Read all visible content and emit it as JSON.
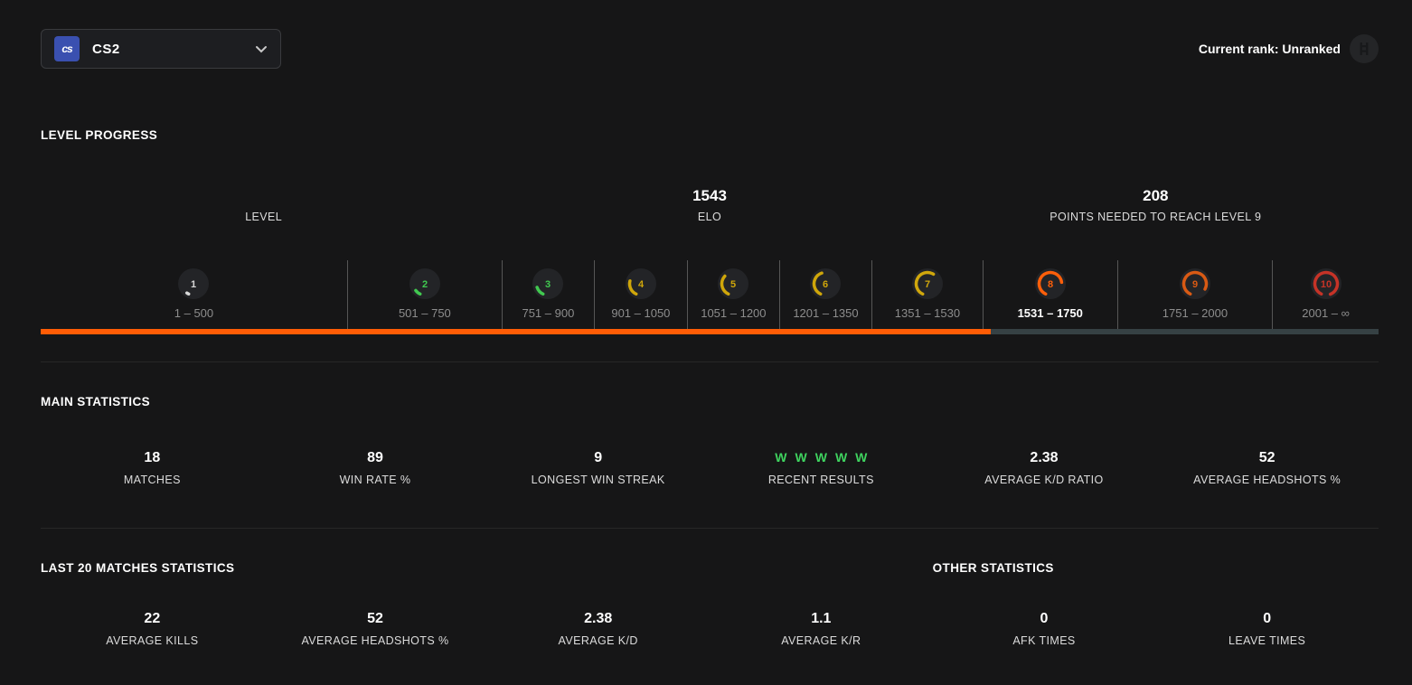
{
  "header": {
    "game_selector": {
      "icon_label": "cs",
      "label": "CS2"
    },
    "current_rank": {
      "label": "Current rank: Unranked"
    }
  },
  "colors": {
    "accent_orange": "#ff5c05",
    "track_grey": "#364144",
    "win_green": "#3fd35f",
    "badge_bg": "#232427"
  },
  "level_progress": {
    "title": "LEVEL PROGRESS",
    "summary": [
      {
        "value": "",
        "label": "LEVEL"
      },
      {
        "value": "1543",
        "label": "ELO"
      },
      {
        "value": "208",
        "label": "POINTS NEEDED TO REACH LEVEL 9"
      }
    ],
    "progress_percent": 71,
    "levels": [
      {
        "level": "1",
        "range": "1 – 500",
        "color": "#d8d8d8",
        "arc": 0.03,
        "width_pct": 22.9,
        "current": false
      },
      {
        "level": "2",
        "range": "501 – 750",
        "color": "#41c950",
        "arc": 0.08,
        "width_pct": 11.55,
        "current": false
      },
      {
        "level": "3",
        "range": "751 – 900",
        "color": "#41c950",
        "arc": 0.13,
        "width_pct": 6.9,
        "current": false
      },
      {
        "level": "4",
        "range": "901 – 1050",
        "color": "#cfa60a",
        "arc": 0.22,
        "width_pct": 6.95,
        "current": false
      },
      {
        "level": "5",
        "range": "1051 – 1200",
        "color": "#cfa60a",
        "arc": 0.3,
        "width_pct": 6.9,
        "current": false
      },
      {
        "level": "6",
        "range": "1201 – 1350",
        "color": "#cfa60a",
        "arc": 0.38,
        "width_pct": 6.9,
        "current": false
      },
      {
        "level": "7",
        "range": "1351 – 1530",
        "color": "#d0a70c",
        "arc": 0.52,
        "width_pct": 8.3,
        "current": false
      },
      {
        "level": "8",
        "range": "1531 – 1750",
        "color": "#fe5f0a",
        "arc": 0.66,
        "width_pct": 10.05,
        "current": true
      },
      {
        "level": "9",
        "range": "1751 – 2000",
        "color": "#d95a14",
        "arc": 0.76,
        "width_pct": 11.6,
        "current": false
      },
      {
        "level": "10",
        "range": "2001 – ∞",
        "color": "#c63327",
        "arc": 0.87,
        "width_pct": 7.95,
        "current": false
      }
    ]
  },
  "main_statistics": {
    "title": "MAIN STATISTICS",
    "stats": [
      {
        "value": "18",
        "label": "MATCHES"
      },
      {
        "value": "89",
        "label": "WIN RATE %"
      },
      {
        "value": "9",
        "label": "LONGEST WIN STREAK"
      },
      {
        "value": "W W W W W",
        "label": "RECENT RESULTS",
        "results": [
          "W",
          "W",
          "W",
          "W",
          "W"
        ]
      },
      {
        "value": "2.38",
        "label": "AVERAGE K/D RATIO"
      },
      {
        "value": "52",
        "label": "AVERAGE HEADSHOTS %"
      }
    ]
  },
  "bottom_statistics": {
    "left_title": "LAST 20 MATCHES STATISTICS",
    "right_title": "OTHER STATISTICS",
    "stats": [
      {
        "value": "22",
        "label": "AVERAGE KILLS"
      },
      {
        "value": "52",
        "label": "AVERAGE HEADSHOTS %"
      },
      {
        "value": "2.38",
        "label": "AVERAGE K/D"
      },
      {
        "value": "1.1",
        "label": "AVERAGE K/R"
      },
      {
        "value": "0",
        "label": "AFK TIMES"
      },
      {
        "value": "0",
        "label": "LEAVE TIMES"
      }
    ]
  }
}
